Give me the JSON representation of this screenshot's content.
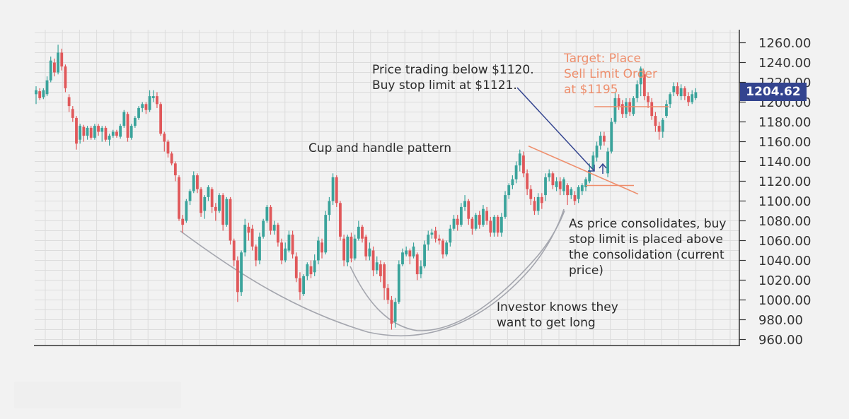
{
  "chart_data": {
    "type": "candlestick",
    "title": "",
    "xlabel": "",
    "ylabel": "",
    "ylim": [
      955,
      1270
    ],
    "y_ticks": [
      "1260.00",
      "1240.00",
      "1220.00",
      "1200.00",
      "1180.00",
      "1160.00",
      "1140.00",
      "1120.00",
      "1100.00",
      "1080.00",
      "1060.00",
      "1040.00",
      "1020.00",
      "1000.00",
      "980.00",
      "960.00"
    ],
    "y_tick_values": [
      1260,
      1240,
      1220,
      1200,
      1180,
      1160,
      1140,
      1120,
      1100,
      1080,
      1060,
      1040,
      1020,
      1000,
      980,
      960
    ],
    "grid": true,
    "axis_side": "right",
    "up_color": "#3aa39b",
    "down_color": "#e0585a",
    "candles": [
      {
        "o": 1208,
        "c": 1212,
        "h": 1216,
        "l": 1198
      },
      {
        "o": 1211,
        "c": 1204,
        "h": 1214,
        "l": 1202
      },
      {
        "o": 1205,
        "c": 1212,
        "h": 1214,
        "l": 1203
      },
      {
        "o": 1208,
        "c": 1222,
        "h": 1226,
        "l": 1206
      },
      {
        "o": 1222,
        "c": 1242,
        "h": 1246,
        "l": 1220
      },
      {
        "o": 1240,
        "c": 1230,
        "h": 1244,
        "l": 1226
      },
      {
        "o": 1230,
        "c": 1250,
        "h": 1258,
        "l": 1228
      },
      {
        "o": 1250,
        "c": 1236,
        "h": 1254,
        "l": 1232
      },
      {
        "o": 1236,
        "c": 1214,
        "h": 1238,
        "l": 1210
      },
      {
        "o": 1205,
        "c": 1196,
        "h": 1208,
        "l": 1190
      },
      {
        "o": 1193,
        "c": 1184,
        "h": 1196,
        "l": 1180
      },
      {
        "o": 1184,
        "c": 1158,
        "h": 1186,
        "l": 1152
      },
      {
        "o": 1162,
        "c": 1176,
        "h": 1178,
        "l": 1158
      },
      {
        "o": 1175,
        "c": 1166,
        "h": 1177,
        "l": 1160
      },
      {
        "o": 1166,
        "c": 1174,
        "h": 1176,
        "l": 1162
      },
      {
        "o": 1174,
        "c": 1164,
        "h": 1176,
        "l": 1162
      },
      {
        "o": 1164,
        "c": 1176,
        "h": 1178,
        "l": 1162
      },
      {
        "o": 1176,
        "c": 1170,
        "h": 1178,
        "l": 1166
      },
      {
        "o": 1170,
        "c": 1174,
        "h": 1176,
        "l": 1160
      },
      {
        "o": 1174,
        "c": 1162,
        "h": 1176,
        "l": 1160
      },
      {
        "o": 1162,
        "c": 1166,
        "h": 1168,
        "l": 1156
      },
      {
        "o": 1166,
        "c": 1170,
        "h": 1172,
        "l": 1164
      },
      {
        "o": 1170,
        "c": 1166,
        "h": 1172,
        "l": 1164
      },
      {
        "o": 1165,
        "c": 1176,
        "h": 1178,
        "l": 1163
      },
      {
        "o": 1176,
        "c": 1190,
        "h": 1192,
        "l": 1174
      },
      {
        "o": 1188,
        "c": 1164,
        "h": 1190,
        "l": 1160
      },
      {
        "o": 1164,
        "c": 1176,
        "h": 1178,
        "l": 1162
      },
      {
        "o": 1176,
        "c": 1184,
        "h": 1186,
        "l": 1174
      },
      {
        "o": 1184,
        "c": 1194,
        "h": 1196,
        "l": 1182
      },
      {
        "o": 1194,
        "c": 1198,
        "h": 1200,
        "l": 1190
      },
      {
        "o": 1198,
        "c": 1192,
        "h": 1200,
        "l": 1188
      },
      {
        "o": 1192,
        "c": 1206,
        "h": 1212,
        "l": 1190
      },
      {
        "o": 1204,
        "c": 1206,
        "h": 1212,
        "l": 1200
      },
      {
        "o": 1206,
        "c": 1198,
        "h": 1210,
        "l": 1194
      },
      {
        "o": 1198,
        "c": 1168,
        "h": 1200,
        "l": 1166
      },
      {
        "o": 1168,
        "c": 1160,
        "h": 1170,
        "l": 1150
      },
      {
        "o": 1160,
        "c": 1148,
        "h": 1162,
        "l": 1144
      },
      {
        "o": 1148,
        "c": 1138,
        "h": 1150,
        "l": 1136
      },
      {
        "o": 1138,
        "c": 1126,
        "h": 1140,
        "l": 1120
      },
      {
        "o": 1124,
        "c": 1082,
        "h": 1126,
        "l": 1080
      },
      {
        "o": 1082,
        "c": 1076,
        "h": 1086,
        "l": 1068
      },
      {
        "o": 1080,
        "c": 1100,
        "h": 1102,
        "l": 1078
      },
      {
        "o": 1100,
        "c": 1110,
        "h": 1112,
        "l": 1096
      },
      {
        "o": 1110,
        "c": 1126,
        "h": 1130,
        "l": 1108
      },
      {
        "o": 1126,
        "c": 1112,
        "h": 1128,
        "l": 1108
      },
      {
        "o": 1112,
        "c": 1088,
        "h": 1114,
        "l": 1084
      },
      {
        "o": 1090,
        "c": 1104,
        "h": 1106,
        "l": 1082
      },
      {
        "o": 1104,
        "c": 1114,
        "h": 1116,
        "l": 1100
      },
      {
        "o": 1112,
        "c": 1094,
        "h": 1114,
        "l": 1088
      },
      {
        "o": 1094,
        "c": 1090,
        "h": 1098,
        "l": 1080
      },
      {
        "o": 1090,
        "c": 1106,
        "h": 1108,
        "l": 1088
      },
      {
        "o": 1106,
        "c": 1076,
        "h": 1108,
        "l": 1070
      },
      {
        "o": 1076,
        "c": 1102,
        "h": 1104,
        "l": 1074
      },
      {
        "o": 1102,
        "c": 1060,
        "h": 1104,
        "l": 1056
      },
      {
        "o": 1060,
        "c": 1040,
        "h": 1062,
        "l": 1034
      },
      {
        "o": 1040,
        "c": 1008,
        "h": 1044,
        "l": 998
      },
      {
        "o": 1008,
        "c": 1048,
        "h": 1050,
        "l": 1004
      },
      {
        "o": 1048,
        "c": 1076,
        "h": 1082,
        "l": 1044
      },
      {
        "o": 1074,
        "c": 1068,
        "h": 1078,
        "l": 1060
      },
      {
        "o": 1072,
        "c": 1054,
        "h": 1076,
        "l": 1050
      },
      {
        "o": 1054,
        "c": 1040,
        "h": 1056,
        "l": 1034
      },
      {
        "o": 1040,
        "c": 1064,
        "h": 1068,
        "l": 1036
      },
      {
        "o": 1064,
        "c": 1080,
        "h": 1082,
        "l": 1062
      },
      {
        "o": 1080,
        "c": 1094,
        "h": 1096,
        "l": 1078
      },
      {
        "o": 1094,
        "c": 1070,
        "h": 1096,
        "l": 1066
      },
      {
        "o": 1070,
        "c": 1076,
        "h": 1080,
        "l": 1066
      },
      {
        "o": 1076,
        "c": 1058,
        "h": 1078,
        "l": 1054
      },
      {
        "o": 1058,
        "c": 1040,
        "h": 1062,
        "l": 1036
      },
      {
        "o": 1040,
        "c": 1052,
        "h": 1058,
        "l": 1038
      },
      {
        "o": 1050,
        "c": 1066,
        "h": 1070,
        "l": 1048
      },
      {
        "o": 1066,
        "c": 1046,
        "h": 1070,
        "l": 1042
      },
      {
        "o": 1044,
        "c": 1022,
        "h": 1048,
        "l": 1018
      },
      {
        "o": 1022,
        "c": 1008,
        "h": 1028,
        "l": 1000
      },
      {
        "o": 1006,
        "c": 1024,
        "h": 1026,
        "l": 1004
      },
      {
        "o": 1024,
        "c": 1036,
        "h": 1038,
        "l": 1020
      },
      {
        "o": 1034,
        "c": 1026,
        "h": 1040,
        "l": 1022
      },
      {
        "o": 1028,
        "c": 1040,
        "h": 1046,
        "l": 1024
      },
      {
        "o": 1040,
        "c": 1060,
        "h": 1064,
        "l": 1036
      },
      {
        "o": 1058,
        "c": 1048,
        "h": 1062,
        "l": 1042
      },
      {
        "o": 1048,
        "c": 1086,
        "h": 1090,
        "l": 1046
      },
      {
        "o": 1086,
        "c": 1100,
        "h": 1104,
        "l": 1080
      },
      {
        "o": 1100,
        "c": 1124,
        "h": 1128,
        "l": 1096
      },
      {
        "o": 1124,
        "c": 1098,
        "h": 1126,
        "l": 1094
      },
      {
        "o": 1098,
        "c": 1064,
        "h": 1100,
        "l": 1060
      },
      {
        "o": 1062,
        "c": 1040,
        "h": 1066,
        "l": 1034
      },
      {
        "o": 1038,
        "c": 1064,
        "h": 1066,
        "l": 1034
      },
      {
        "o": 1064,
        "c": 1042,
        "h": 1068,
        "l": 1038
      },
      {
        "o": 1042,
        "c": 1062,
        "h": 1066,
        "l": 1040
      },
      {
        "o": 1062,
        "c": 1074,
        "h": 1080,
        "l": 1060
      },
      {
        "o": 1074,
        "c": 1062,
        "h": 1076,
        "l": 1058
      },
      {
        "o": 1064,
        "c": 1044,
        "h": 1066,
        "l": 1040
      },
      {
        "o": 1044,
        "c": 1052,
        "h": 1058,
        "l": 1040
      },
      {
        "o": 1050,
        "c": 1030,
        "h": 1054,
        "l": 1024
      },
      {
        "o": 1030,
        "c": 1038,
        "h": 1044,
        "l": 1026
      },
      {
        "o": 1036,
        "c": 1024,
        "h": 1040,
        "l": 1018
      },
      {
        "o": 1036,
        "c": 1012,
        "h": 1038,
        "l": 1000
      },
      {
        "o": 1012,
        "c": 1000,
        "h": 1016,
        "l": 996
      },
      {
        "o": 1000,
        "c": 976,
        "h": 1004,
        "l": 970
      },
      {
        "o": 978,
        "c": 998,
        "h": 1002,
        "l": 972
      },
      {
        "o": 998,
        "c": 1036,
        "h": 1040,
        "l": 996
      },
      {
        "o": 1036,
        "c": 1048,
        "h": 1052,
        "l": 1034
      },
      {
        "o": 1046,
        "c": 1050,
        "h": 1054,
        "l": 1044
      },
      {
        "o": 1050,
        "c": 1044,
        "h": 1052,
        "l": 1036
      },
      {
        "o": 1044,
        "c": 1054,
        "h": 1058,
        "l": 1042
      },
      {
        "o": 1046,
        "c": 1026,
        "h": 1048,
        "l": 1020
      },
      {
        "o": 1026,
        "c": 1034,
        "h": 1040,
        "l": 1022
      },
      {
        "o": 1034,
        "c": 1056,
        "h": 1060,
        "l": 1032
      },
      {
        "o": 1056,
        "c": 1066,
        "h": 1070,
        "l": 1050
      },
      {
        "o": 1066,
        "c": 1068,
        "h": 1072,
        "l": 1062
      },
      {
        "o": 1070,
        "c": 1062,
        "h": 1074,
        "l": 1058
      },
      {
        "o": 1062,
        "c": 1060,
        "h": 1066,
        "l": 1056
      },
      {
        "o": 1060,
        "c": 1046,
        "h": 1062,
        "l": 1042
      },
      {
        "o": 1046,
        "c": 1058,
        "h": 1060,
        "l": 1044
      },
      {
        "o": 1058,
        "c": 1072,
        "h": 1076,
        "l": 1054
      },
      {
        "o": 1072,
        "c": 1082,
        "h": 1086,
        "l": 1070
      },
      {
        "o": 1082,
        "c": 1076,
        "h": 1086,
        "l": 1070
      },
      {
        "o": 1076,
        "c": 1094,
        "h": 1098,
        "l": 1074
      },
      {
        "o": 1094,
        "c": 1100,
        "h": 1106,
        "l": 1090
      },
      {
        "o": 1100,
        "c": 1082,
        "h": 1102,
        "l": 1076
      },
      {
        "o": 1082,
        "c": 1072,
        "h": 1084,
        "l": 1066
      },
      {
        "o": 1072,
        "c": 1086,
        "h": 1088,
        "l": 1070
      },
      {
        "o": 1086,
        "c": 1076,
        "h": 1090,
        "l": 1072
      },
      {
        "o": 1076,
        "c": 1092,
        "h": 1096,
        "l": 1074
      },
      {
        "o": 1090,
        "c": 1080,
        "h": 1094,
        "l": 1076
      },
      {
        "o": 1080,
        "c": 1068,
        "h": 1084,
        "l": 1064
      },
      {
        "o": 1068,
        "c": 1084,
        "h": 1086,
        "l": 1064
      },
      {
        "o": 1084,
        "c": 1068,
        "h": 1086,
        "l": 1064
      },
      {
        "o": 1068,
        "c": 1084,
        "h": 1088,
        "l": 1064
      },
      {
        "o": 1084,
        "c": 1106,
        "h": 1110,
        "l": 1082
      },
      {
        "o": 1106,
        "c": 1116,
        "h": 1118,
        "l": 1102
      },
      {
        "o": 1116,
        "c": 1122,
        "h": 1126,
        "l": 1112
      },
      {
        "o": 1122,
        "c": 1136,
        "h": 1140,
        "l": 1118
      },
      {
        "o": 1136,
        "c": 1148,
        "h": 1152,
        "l": 1130
      },
      {
        "o": 1146,
        "c": 1128,
        "h": 1150,
        "l": 1124
      },
      {
        "o": 1128,
        "c": 1112,
        "h": 1132,
        "l": 1106
      },
      {
        "o": 1112,
        "c": 1102,
        "h": 1116,
        "l": 1096
      },
      {
        "o": 1100,
        "c": 1090,
        "h": 1104,
        "l": 1086
      },
      {
        "o": 1090,
        "c": 1104,
        "h": 1108,
        "l": 1086
      },
      {
        "o": 1104,
        "c": 1098,
        "h": 1108,
        "l": 1092
      },
      {
        "o": 1106,
        "c": 1124,
        "h": 1128,
        "l": 1100
      },
      {
        "o": 1124,
        "c": 1128,
        "h": 1132,
        "l": 1120
      },
      {
        "o": 1128,
        "c": 1116,
        "h": 1130,
        "l": 1112
      },
      {
        "o": 1114,
        "c": 1120,
        "h": 1124,
        "l": 1110
      },
      {
        "o": 1120,
        "c": 1112,
        "h": 1124,
        "l": 1106
      },
      {
        "o": 1110,
        "c": 1122,
        "h": 1124,
        "l": 1106
      },
      {
        "o": 1116,
        "c": 1106,
        "h": 1118,
        "l": 1096
      },
      {
        "o": 1106,
        "c": 1112,
        "h": 1114,
        "l": 1102
      },
      {
        "o": 1106,
        "c": 1100,
        "h": 1110,
        "l": 1096
      },
      {
        "o": 1102,
        "c": 1114,
        "h": 1116,
        "l": 1098
      },
      {
        "o": 1110,
        "c": 1116,
        "h": 1118,
        "l": 1106
      },
      {
        "o": 1114,
        "c": 1122,
        "h": 1124,
        "l": 1110
      },
      {
        "o": 1120,
        "c": 1130,
        "h": 1138,
        "l": 1118
      },
      {
        "o": 1132,
        "c": 1146,
        "h": 1150,
        "l": 1130
      },
      {
        "o": 1144,
        "c": 1156,
        "h": 1160,
        "l": 1140
      },
      {
        "o": 1156,
        "c": 1166,
        "h": 1170,
        "l": 1152
      },
      {
        "o": 1166,
        "c": 1160,
        "h": 1170,
        "l": 1156
      },
      {
        "o": 1128,
        "c": 1150,
        "h": 1154,
        "l": 1124
      },
      {
        "o": 1150,
        "c": 1180,
        "h": 1184,
        "l": 1148
      },
      {
        "o": 1180,
        "c": 1204,
        "h": 1210,
        "l": 1178
      },
      {
        "o": 1204,
        "c": 1196,
        "h": 1208,
        "l": 1192
      },
      {
        "o": 1198,
        "c": 1188,
        "h": 1202,
        "l": 1184
      },
      {
        "o": 1188,
        "c": 1200,
        "h": 1204,
        "l": 1184
      },
      {
        "o": 1200,
        "c": 1190,
        "h": 1204,
        "l": 1186
      },
      {
        "o": 1188,
        "c": 1204,
        "h": 1206,
        "l": 1186
      },
      {
        "o": 1204,
        "c": 1218,
        "h": 1222,
        "l": 1200
      },
      {
        "o": 1218,
        "c": 1234,
        "h": 1236,
        "l": 1206
      },
      {
        "o": 1228,
        "c": 1206,
        "h": 1232,
        "l": 1202
      },
      {
        "o": 1206,
        "c": 1200,
        "h": 1210,
        "l": 1194
      },
      {
        "o": 1200,
        "c": 1186,
        "h": 1204,
        "l": 1182
      },
      {
        "o": 1186,
        "c": 1176,
        "h": 1190,
        "l": 1170
      },
      {
        "o": 1176,
        "c": 1170,
        "h": 1180,
        "l": 1162
      },
      {
        "o": 1170,
        "c": 1182,
        "h": 1184,
        "l": 1164
      },
      {
        "o": 1186,
        "c": 1198,
        "h": 1202,
        "l": 1184
      },
      {
        "o": 1198,
        "c": 1208,
        "h": 1210,
        "l": 1194
      },
      {
        "o": 1210,
        "c": 1216,
        "h": 1220,
        "l": 1206
      },
      {
        "o": 1216,
        "c": 1208,
        "h": 1220,
        "l": 1206
      },
      {
        "o": 1206,
        "c": 1214,
        "h": 1218,
        "l": 1202
      },
      {
        "o": 1214,
        "c": 1206,
        "h": 1216,
        "l": 1202
      },
      {
        "o": 1206,
        "c": 1200,
        "h": 1210,
        "l": 1196
      },
      {
        "o": 1200,
        "c": 1208,
        "h": 1212,
        "l": 1198
      },
      {
        "o": 1204,
        "c": 1210,
        "h": 1214,
        "l": 1202
      }
    ],
    "annotations": {
      "trigger": [
        "Price trading below $1120.",
        "Buy stop limit at $1121."
      ],
      "target": [
        "Target: Place",
        "Sell Limit Order",
        "at $1195"
      ],
      "pattern": [
        "Cup and handle pattern"
      ],
      "consolidation": [
        "As price consolidates, buy",
        "stop limit is placed above",
        "the consolidation (current",
        "price)"
      ],
      "investor": [
        "Investor knows they",
        "want to get long"
      ]
    },
    "current_price": "1204.62",
    "target_price": 1195,
    "buy_stop_price": 1121,
    "handle_resistance": [
      1157,
      1117
    ],
    "handle_support": 1120
  },
  "colors": {
    "background": "#f2f2f2",
    "grid": "#dcdcdc",
    "axis": "#333333",
    "up": "#3aa39b",
    "down": "#e0585a",
    "target_line": "#ee8e6c",
    "arrow": "#33448f",
    "curve": "#a4a6ae",
    "badge": "#33448f"
  }
}
